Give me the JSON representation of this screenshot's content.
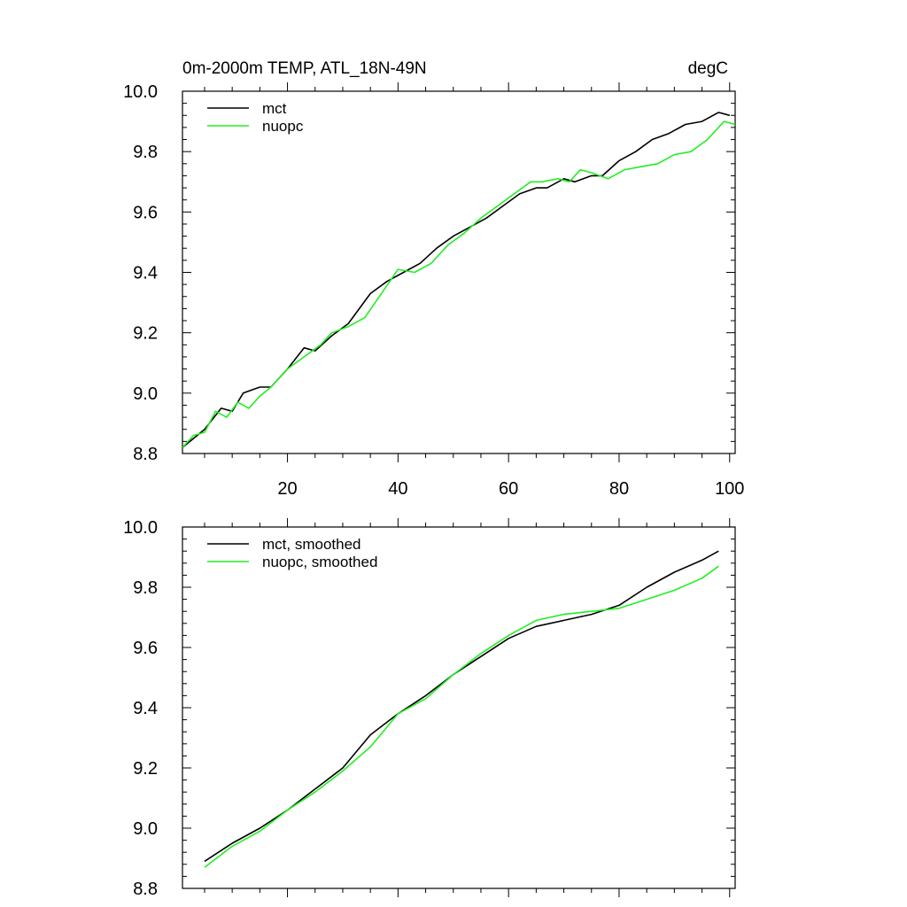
{
  "colors": {
    "mct": "#000000",
    "nuopc": "#22ee22",
    "axis": "#000000"
  },
  "chart_data": [
    {
      "type": "line",
      "title": "0m-2000m TEMP, ATL_18N-49N",
      "units": "degC",
      "xlim": [
        1,
        101
      ],
      "ylim": [
        8.8,
        10.0
      ],
      "xticks": [
        20,
        40,
        60,
        80,
        100
      ],
      "xtick_labels": [
        "20",
        "40",
        "60",
        "80",
        "100"
      ],
      "yticks": [
        8.8,
        9.0,
        9.2,
        9.4,
        9.6,
        9.8,
        10.0
      ],
      "ytick_labels": [
        "8.8",
        "9.0",
        "9.2",
        "9.4",
        "9.6",
        "9.8",
        "10.0"
      ],
      "legend": "top-left",
      "grid": false,
      "series": [
        {
          "name": "mct",
          "color_key": "mct",
          "x": [
            1,
            5,
            8,
            10,
            12,
            15,
            17,
            20,
            23,
            25,
            28,
            31,
            35,
            38,
            41,
            44,
            47,
            50,
            53,
            56,
            59,
            62,
            65,
            67,
            70,
            72,
            75,
            77,
            80,
            83,
            86,
            89,
            92,
            95,
            98,
            100
          ],
          "y": [
            8.82,
            8.88,
            8.95,
            8.94,
            9.0,
            9.02,
            9.02,
            9.08,
            9.15,
            9.14,
            9.19,
            9.23,
            9.33,
            9.37,
            9.4,
            9.43,
            9.48,
            9.52,
            9.55,
            9.58,
            9.62,
            9.66,
            9.68,
            9.68,
            9.71,
            9.7,
            9.72,
            9.72,
            9.77,
            9.8,
            9.84,
            9.86,
            9.89,
            9.9,
            9.93,
            9.92
          ]
        },
        {
          "name": "nuopc",
          "color_key": "nuopc",
          "x": [
            1,
            3,
            5,
            7,
            9,
            11,
            13,
            15,
            17,
            20,
            23,
            26,
            28,
            31,
            34,
            37,
            40,
            43,
            46,
            49,
            52,
            55,
            58,
            61,
            64,
            66,
            69,
            71,
            73,
            75,
            78,
            81,
            84,
            87,
            90,
            93,
            96,
            99,
            101
          ],
          "y": [
            8.82,
            8.86,
            8.87,
            8.94,
            8.92,
            8.97,
            8.95,
            8.99,
            9.02,
            9.08,
            9.12,
            9.16,
            9.2,
            9.22,
            9.25,
            9.33,
            9.41,
            9.4,
            9.43,
            9.49,
            9.53,
            9.58,
            9.62,
            9.66,
            9.7,
            9.7,
            9.71,
            9.7,
            9.74,
            9.73,
            9.71,
            9.74,
            9.75,
            9.76,
            9.79,
            9.8,
            9.84,
            9.9,
            9.89
          ]
        }
      ]
    },
    {
      "type": "line",
      "xlim": [
        1,
        101
      ],
      "ylim": [
        8.8,
        10.0
      ],
      "xticks": [
        20,
        40,
        60,
        80,
        100
      ],
      "yticks": [
        8.8,
        9.0,
        9.2,
        9.4,
        9.6,
        9.8,
        10.0
      ],
      "ytick_labels": [
        "8.8",
        "9.0",
        "9.2",
        "9.4",
        "9.6",
        "9.8",
        "10.0"
      ],
      "legend": "top-left",
      "grid": false,
      "series": [
        {
          "name": "mct, smoothed",
          "color_key": "mct",
          "x": [
            5,
            10,
            15,
            20,
            25,
            30,
            35,
            40,
            45,
            50,
            55,
            60,
            65,
            70,
            75,
            80,
            85,
            90,
            95,
            98
          ],
          "y": [
            8.89,
            8.95,
            9.0,
            9.06,
            9.13,
            9.2,
            9.31,
            9.38,
            9.44,
            9.51,
            9.57,
            9.63,
            9.67,
            9.69,
            9.71,
            9.74,
            9.8,
            9.85,
            9.89,
            9.92
          ]
        },
        {
          "name": "nuopc, smoothed",
          "color_key": "nuopc",
          "x": [
            5,
            10,
            15,
            20,
            25,
            30,
            35,
            40,
            45,
            50,
            55,
            60,
            65,
            70,
            75,
            80,
            85,
            90,
            95,
            98
          ],
          "y": [
            8.87,
            8.94,
            8.99,
            9.06,
            9.12,
            9.19,
            9.27,
            9.38,
            9.43,
            9.51,
            9.58,
            9.64,
            9.69,
            9.71,
            9.72,
            9.73,
            9.76,
            9.79,
            9.83,
            9.87
          ]
        }
      ]
    }
  ]
}
